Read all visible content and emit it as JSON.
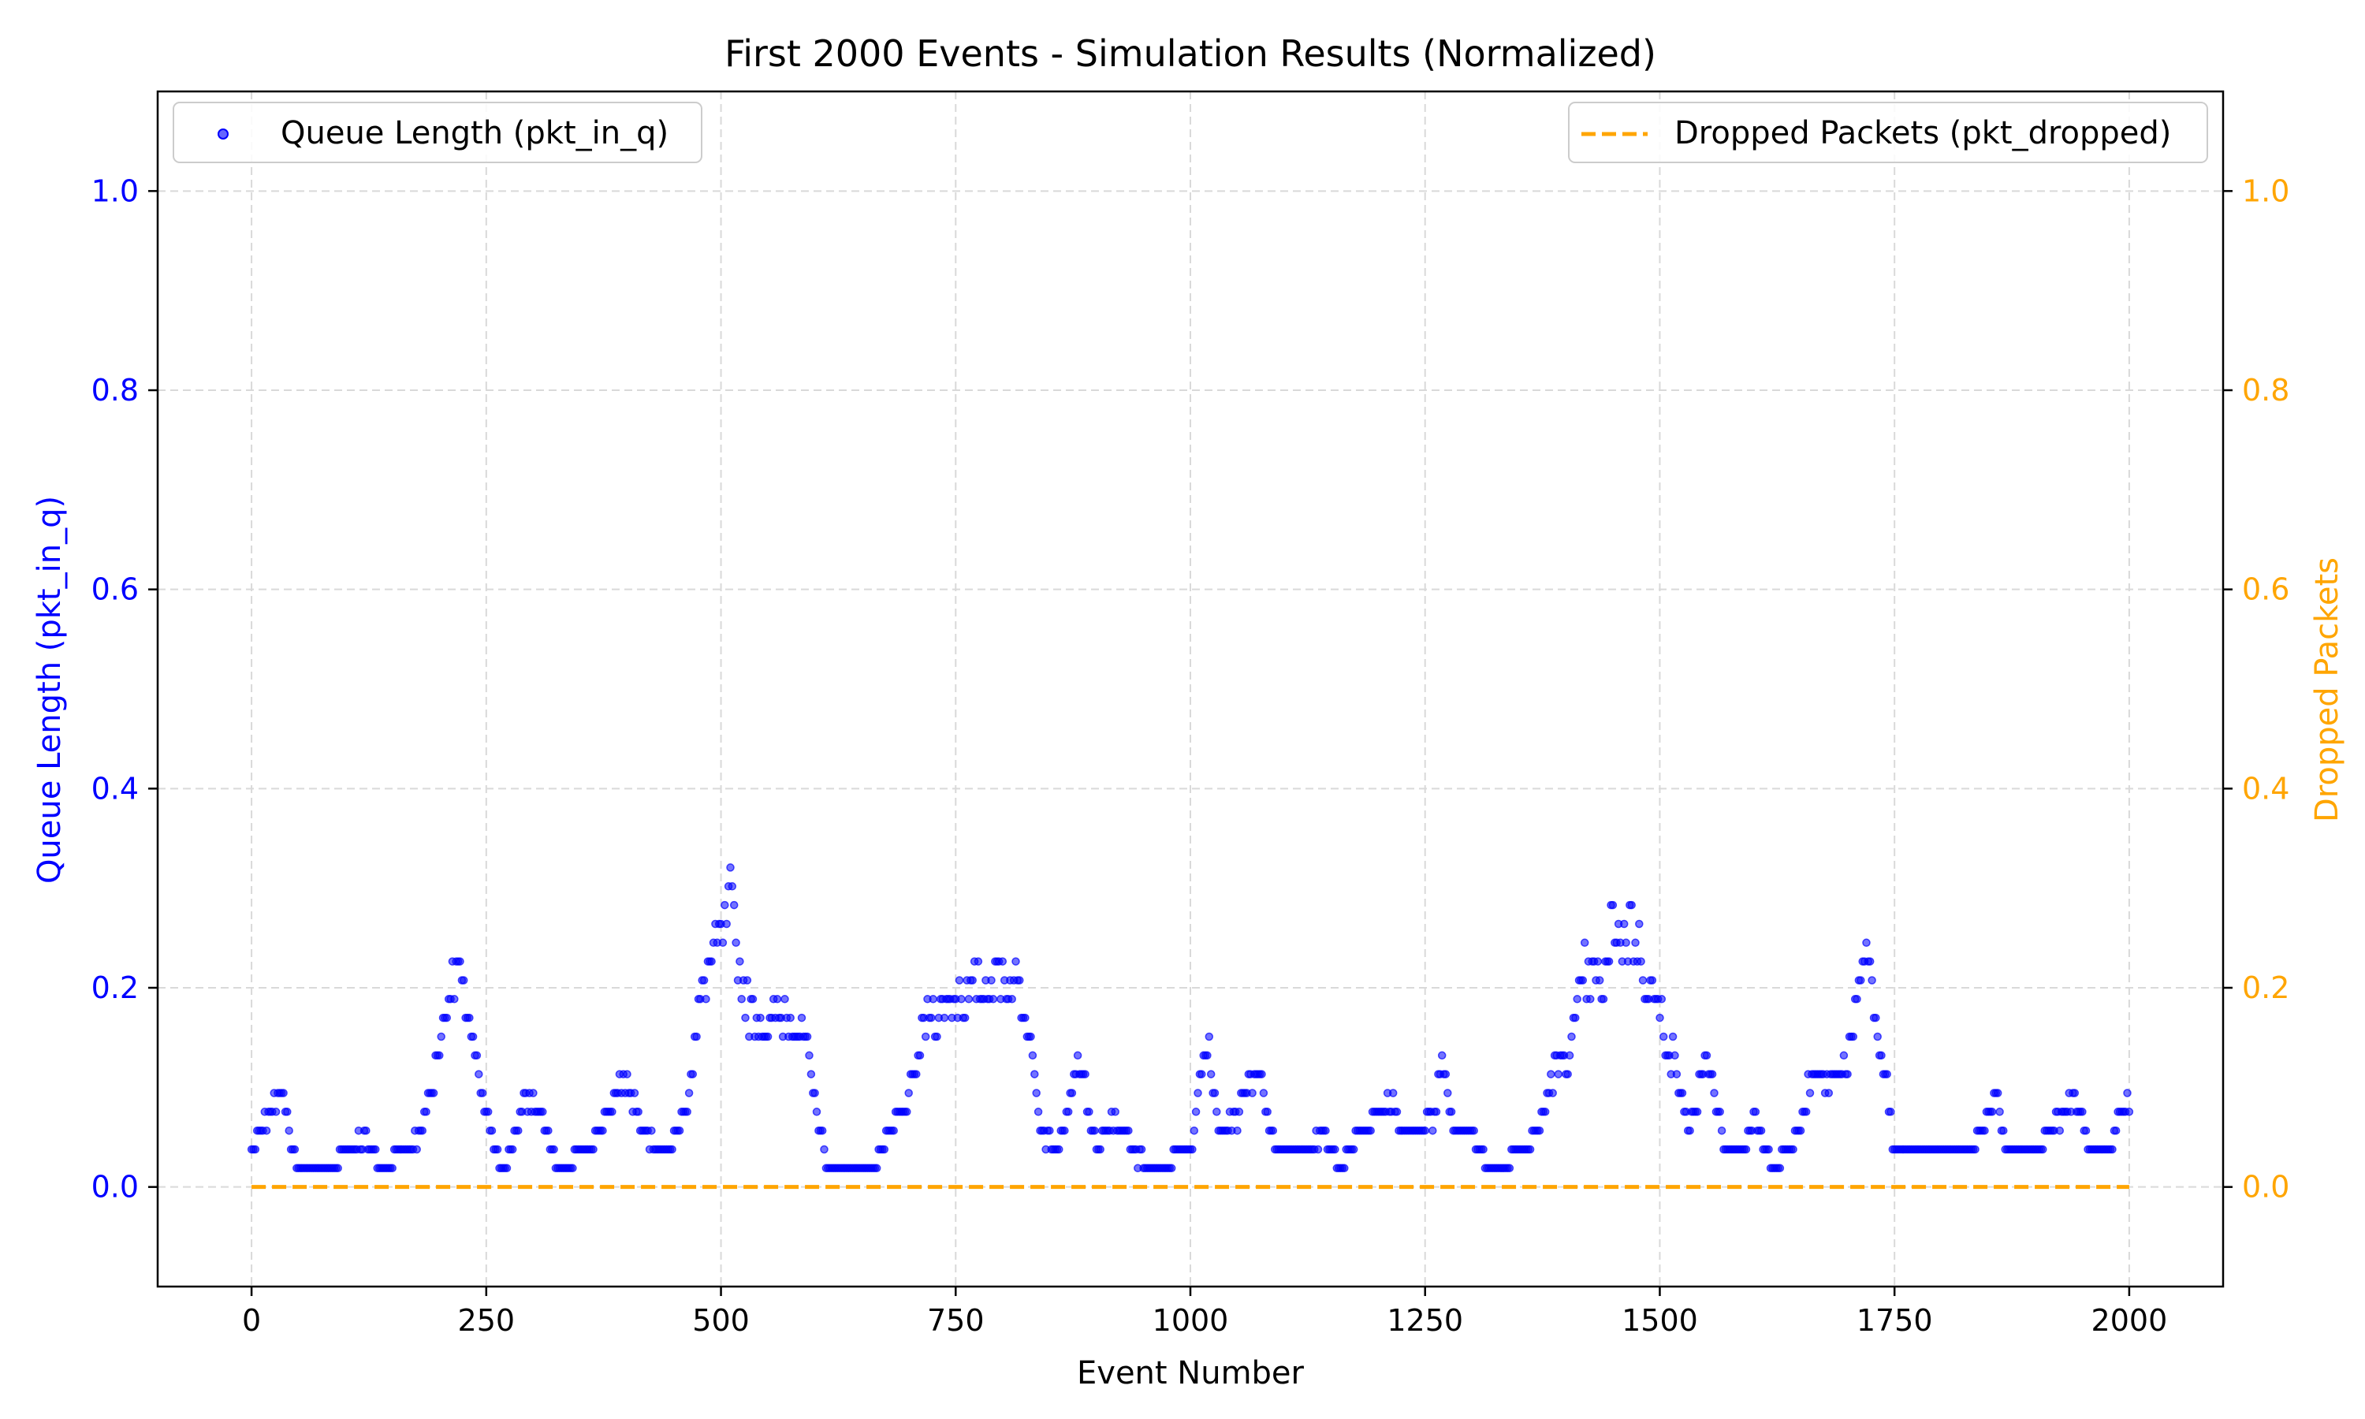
{
  "chart_data": {
    "type": "scatter",
    "title": "First 2000 Events - Simulation Results (Normalized)",
    "xlabel": "Event Number",
    "ylabel_left": "Queue Length (pkt_in_q)",
    "ylabel_right": "Dropped Packets",
    "xlim": [
      -100,
      2100
    ],
    "ylim": [
      -0.1,
      1.1
    ],
    "xticks": [
      0,
      250,
      500,
      750,
      1000,
      1250,
      1500,
      1750,
      2000
    ],
    "yticks": [
      0.0,
      0.2,
      0.4,
      0.6,
      0.8,
      1.0
    ],
    "xtick_labels": [
      "0",
      "250",
      "500",
      "750",
      "1000",
      "1250",
      "1500",
      "1750",
      "2000"
    ],
    "ytick_labels": [
      "0.0",
      "0.2",
      "0.4",
      "0.6",
      "0.8",
      "1.0"
    ],
    "grid": true,
    "legends": {
      "left": {
        "placement": "upper-left",
        "label": "Queue Length (pkt_in_q)"
      },
      "right": {
        "placement": "upper-right",
        "label": "Dropped Packets (pkt_dropped)"
      }
    },
    "colors": {
      "queue": "#0000ff",
      "dropped": "#ffa500",
      "right_axis": "#ffa500",
      "left_axis": "#0000ff"
    },
    "series": [
      {
        "name": "Queue Length (pkt_in_q)",
        "type": "scatter",
        "axis": "left",
        "envelope": [
          [
            0,
            0.04
          ],
          [
            10,
            0.06
          ],
          [
            20,
            0.08
          ],
          [
            30,
            0.12
          ],
          [
            40,
            0.06
          ],
          [
            50,
            0.02
          ],
          [
            80,
            0.02
          ],
          [
            100,
            0.04
          ],
          [
            120,
            0.06
          ],
          [
            140,
            0.02
          ],
          [
            160,
            0.04
          ],
          [
            180,
            0.06
          ],
          [
            190,
            0.1
          ],
          [
            200,
            0.16
          ],
          [
            210,
            0.22
          ],
          [
            220,
            0.245
          ],
          [
            230,
            0.2
          ],
          [
            240,
            0.13
          ],
          [
            250,
            0.08
          ],
          [
            260,
            0.04
          ],
          [
            270,
            0.02
          ],
          [
            280,
            0.06
          ],
          [
            290,
            0.1
          ],
          [
            300,
            0.1
          ],
          [
            310,
            0.08
          ],
          [
            320,
            0.04
          ],
          [
            330,
            0.02
          ],
          [
            350,
            0.04
          ],
          [
            370,
            0.06
          ],
          [
            385,
            0.1
          ],
          [
            395,
            0.12
          ],
          [
            405,
            0.1
          ],
          [
            420,
            0.06
          ],
          [
            440,
            0.04
          ],
          [
            460,
            0.08
          ],
          [
            470,
            0.14
          ],
          [
            480,
            0.22
          ],
          [
            490,
            0.26
          ],
          [
            500,
            0.28
          ],
          [
            510,
            0.32
          ],
          [
            520,
            0.24
          ],
          [
            530,
            0.2
          ],
          [
            550,
            0.18
          ],
          [
            570,
            0.2
          ],
          [
            590,
            0.16
          ],
          [
            600,
            0.1
          ],
          [
            610,
            0.04
          ],
          [
            620,
            0.02
          ],
          [
            660,
            0.02
          ],
          [
            680,
            0.06
          ],
          [
            700,
            0.1
          ],
          [
            710,
            0.14
          ],
          [
            720,
            0.2
          ],
          [
            740,
            0.2
          ],
          [
            760,
            0.22
          ],
          [
            780,
            0.22
          ],
          [
            800,
            0.245
          ],
          [
            820,
            0.22
          ],
          [
            830,
            0.18
          ],
          [
            840,
            0.06
          ],
          [
            860,
            0.04
          ],
          [
            880,
            0.14
          ],
          [
            890,
            0.1
          ],
          [
            900,
            0.04
          ],
          [
            920,
            0.08
          ],
          [
            940,
            0.04
          ],
          [
            960,
            0.02
          ],
          [
            1000,
            0.04
          ],
          [
            1010,
            0.12
          ],
          [
            1020,
            0.16
          ],
          [
            1030,
            0.06
          ],
          [
            1050,
            0.08
          ],
          [
            1070,
            0.14
          ],
          [
            1080,
            0.1
          ],
          [
            1090,
            0.04
          ],
          [
            1120,
            0.04
          ],
          [
            1140,
            0.06
          ],
          [
            1160,
            0.02
          ],
          [
            1180,
            0.06
          ],
          [
            1200,
            0.08
          ],
          [
            1215,
            0.1
          ],
          [
            1230,
            0.06
          ],
          [
            1260,
            0.08
          ],
          [
            1270,
            0.15
          ],
          [
            1280,
            0.06
          ],
          [
            1300,
            0.06
          ],
          [
            1320,
            0.02
          ],
          [
            1350,
            0.04
          ],
          [
            1370,
            0.06
          ],
          [
            1390,
            0.14
          ],
          [
            1400,
            0.14
          ],
          [
            1420,
            0.24
          ],
          [
            1440,
            0.22
          ],
          [
            1450,
            0.3
          ],
          [
            1460,
            0.28
          ],
          [
            1470,
            0.3
          ],
          [
            1490,
            0.22
          ],
          [
            1500,
            0.2
          ],
          [
            1520,
            0.12
          ],
          [
            1530,
            0.06
          ],
          [
            1550,
            0.14
          ],
          [
            1560,
            0.1
          ],
          [
            1570,
            0.04
          ],
          [
            1590,
            0.04
          ],
          [
            1600,
            0.08
          ],
          [
            1620,
            0.02
          ],
          [
            1650,
            0.06
          ],
          [
            1660,
            0.12
          ],
          [
            1680,
            0.12
          ],
          [
            1700,
            0.14
          ],
          [
            1710,
            0.2
          ],
          [
            1720,
            0.28
          ],
          [
            1730,
            0.18
          ],
          [
            1740,
            0.12
          ],
          [
            1750,
            0.04
          ],
          [
            1770,
            0.04
          ],
          [
            1800,
            0.04
          ],
          [
            1830,
            0.04
          ],
          [
            1850,
            0.08
          ],
          [
            1860,
            0.1
          ],
          [
            1870,
            0.04
          ],
          [
            1900,
            0.04
          ],
          [
            1930,
            0.08
          ],
          [
            1940,
            0.1
          ],
          [
            1960,
            0.04
          ],
          [
            1980,
            0.04
          ],
          [
            1990,
            0.08
          ],
          [
            2000,
            0.09
          ]
        ]
      },
      {
        "name": "Dropped Packets (pkt_dropped)",
        "type": "line",
        "axis": "right",
        "x": [
          0,
          2000
        ],
        "y": [
          0.0,
          0.0
        ]
      }
    ]
  }
}
